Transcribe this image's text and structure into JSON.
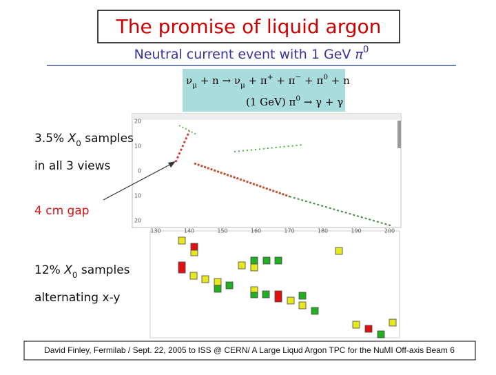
{
  "header": {
    "title": "The promise of liquid argon",
    "subtitle": {
      "text": "Neutral current event with 1 GeV ",
      "symbol": "π",
      "sup": "0"
    }
  },
  "equation": {
    "line1": [
      {
        "t": "ν",
        "sub": "μ"
      },
      {
        "t": " + n → "
      },
      {
        "t": "ν",
        "sub": "μ"
      },
      {
        "t": " + π",
        "sup": "+"
      },
      {
        "t": " + π",
        "sup": "−"
      },
      {
        "t": " + π",
        "sup": "0"
      },
      {
        "t": " + n"
      }
    ],
    "line2": [
      {
        "t": "(1 GeV) π",
        "sup": "0"
      },
      {
        "t": " → γ + γ"
      }
    ]
  },
  "labels": {
    "sample_3d": {
      "prefix": "3.5%",
      "symbol": "X",
      "sub": "0",
      "suffix": "samples"
    },
    "views": "in all 3 views",
    "gap": "4 cm gap",
    "sample_xy": {
      "prefix": "12%",
      "symbol": "X",
      "sub": "0",
      "suffix": "samples"
    },
    "alternating": "alternating x-y"
  },
  "display": {
    "y_labels": [
      "20",
      "10",
      "0",
      "10",
      "20"
    ],
    "x_labels": [
      "130",
      "140",
      "150",
      "160",
      "170",
      "180",
      "190",
      "200"
    ]
  },
  "footer": "David Finley, Fermilab / Sept. 22, 2005 to ISS @ CERN/ A Large Liqud Argon TPC for the NuMI Off-axis Beam 6"
}
